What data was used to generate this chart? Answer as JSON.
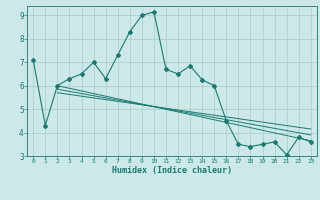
{
  "main_line_x": [
    0,
    1,
    2,
    3,
    4,
    5,
    6,
    7,
    8,
    9,
    10,
    11,
    12,
    13,
    14,
    15,
    16,
    17,
    18,
    19,
    20,
    21,
    22,
    23
  ],
  "main_line_y": [
    7.1,
    4.3,
    6.0,
    6.3,
    6.5,
    7.0,
    6.3,
    7.3,
    8.3,
    9.0,
    9.15,
    6.7,
    6.5,
    6.85,
    6.25,
    6.0,
    4.5,
    3.5,
    3.4,
    3.5,
    3.6,
    3.05,
    3.8,
    3.6
  ],
  "trend_line1_x": [
    2,
    23
  ],
  "trend_line1_y": [
    6.0,
    3.65
  ],
  "trend_line2_x": [
    2,
    23
  ],
  "trend_line2_y": [
    5.85,
    3.9
  ],
  "trend_line3_x": [
    2,
    23
  ],
  "trend_line3_y": [
    5.7,
    4.15
  ],
  "color": "#1a7a6e",
  "bg_color": "#cce8e8",
  "grid_color": "#aacccc",
  "xlabel": "Humidex (Indice chaleur)",
  "xlim": [
    -0.5,
    23.5
  ],
  "ylim": [
    3,
    9.4
  ],
  "yticks": [
    3,
    4,
    5,
    6,
    7,
    8,
    9
  ],
  "xticks": [
    0,
    1,
    2,
    3,
    4,
    5,
    6,
    7,
    8,
    9,
    10,
    11,
    12,
    13,
    14,
    15,
    16,
    17,
    18,
    19,
    20,
    21,
    22,
    23
  ]
}
